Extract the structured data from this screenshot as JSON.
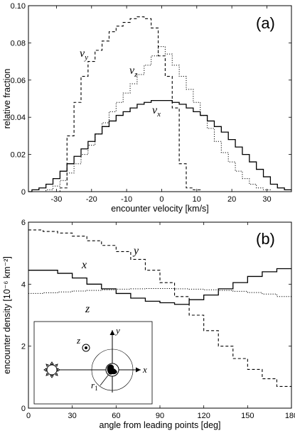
{
  "chart_data": [
    {
      "type": "line",
      "panel_label": "(a)",
      "xlabel": "encounter velocity [km/s]",
      "ylabel": "relative fraction",
      "xlim": [
        -38,
        37
      ],
      "ylim": [
        0,
        0.1
      ],
      "x_ticks": [
        -30,
        -20,
        -10,
        0,
        10,
        20,
        30
      ],
      "x_tick_labels": [
        "-30",
        "-20",
        "-10",
        "0",
        "10",
        "20",
        "30"
      ],
      "y_ticks": [
        0,
        0.02,
        0.04,
        0.06,
        0.08,
        0.1
      ],
      "y_tick_labels": [
        "0",
        "0.02",
        "0.04",
        "0.06",
        "0.08",
        "0.10"
      ],
      "grid": false,
      "series": [
        {
          "name": "v_x",
          "label_main": "v",
          "label_sub": "x",
          "style": "solid",
          "x": [
            -38,
            -36,
            -34,
            -32,
            -30,
            -28,
            -26,
            -24,
            -22,
            -20,
            -18,
            -16,
            -14,
            -12,
            -10,
            -8,
            -6,
            -4,
            -2,
            0,
            2,
            4,
            6,
            8,
            10,
            12,
            14,
            16,
            18,
            20,
            22,
            24,
            26,
            28,
            30,
            32,
            34,
            36
          ],
          "values": [
            0.0,
            0.001,
            0.002,
            0.004,
            0.007,
            0.011,
            0.015,
            0.019,
            0.023,
            0.027,
            0.031,
            0.035,
            0.038,
            0.041,
            0.043,
            0.045,
            0.047,
            0.048,
            0.049,
            0.049,
            0.049,
            0.048,
            0.047,
            0.045,
            0.043,
            0.041,
            0.038,
            0.035,
            0.032,
            0.028,
            0.024,
            0.02,
            0.016,
            0.012,
            0.008,
            0.004,
            0.002,
            0.001
          ]
        },
        {
          "name": "v_y",
          "label_main": "v",
          "label_sub": "y",
          "style": "dashed",
          "x": [
            -38,
            -36,
            -34,
            -32,
            -30,
            -28,
            -26,
            -24,
            -22,
            -20,
            -18,
            -16,
            -14,
            -12,
            -10,
            -8,
            -6,
            -4,
            -2,
            0,
            2,
            4,
            6,
            8,
            10,
            12,
            14,
            16,
            18,
            20,
            22,
            24,
            26,
            28,
            30,
            32,
            34,
            36
          ],
          "values": [
            0.0,
            0.0,
            0.0,
            0.0,
            0.0,
            0.002,
            0.03,
            0.048,
            0.062,
            0.07,
            0.076,
            0.081,
            0.086,
            0.089,
            0.091,
            0.093,
            0.094,
            0.093,
            0.088,
            0.073,
            0.062,
            0.045,
            0.015,
            0.002,
            0.001,
            0.0,
            0.0,
            0.0,
            0.0,
            0.0,
            0.0,
            0.0,
            0.0,
            0.0,
            0.0,
            0.0,
            0.0,
            0.0
          ]
        },
        {
          "name": "v_z",
          "label_main": "v",
          "label_sub": "z",
          "style": "dotted",
          "x": [
            -38,
            -36,
            -34,
            -32,
            -30,
            -28,
            -26,
            -24,
            -22,
            -20,
            -18,
            -16,
            -14,
            -12,
            -10,
            -8,
            -6,
            -4,
            -2,
            0,
            2,
            4,
            6,
            8,
            10,
            12,
            14,
            16,
            18,
            20,
            22,
            24,
            26,
            28,
            30,
            32,
            34,
            36
          ],
          "values": [
            0.0,
            0.0,
            0.0,
            0.001,
            0.003,
            0.006,
            0.01,
            0.015,
            0.02,
            0.025,
            0.031,
            0.037,
            0.043,
            0.048,
            0.053,
            0.058,
            0.063,
            0.068,
            0.073,
            0.078,
            0.074,
            0.068,
            0.062,
            0.055,
            0.048,
            0.041,
            0.034,
            0.027,
            0.021,
            0.016,
            0.011,
            0.007,
            0.004,
            0.002,
            0.001,
            0.0,
            0.0,
            0.0
          ]
        }
      ]
    },
    {
      "type": "line",
      "panel_label": "(b)",
      "xlabel": "angle from leading points [deg]",
      "ylabel": "encounter density [10⁻⁶ km⁻²]",
      "xlim": [
        0,
        180
      ],
      "ylim": [
        0,
        6
      ],
      "x_ticks": [
        0,
        30,
        60,
        90,
        120,
        150,
        180
      ],
      "x_tick_labels": [
        "0",
        "30",
        "60",
        "90",
        "120",
        "150",
        "180"
      ],
      "y_ticks": [
        0,
        2,
        4,
        6
      ],
      "y_tick_labels": [
        "0",
        "2",
        "4",
        "6"
      ],
      "grid": false,
      "series": [
        {
          "name": "x",
          "style": "solid",
          "x": [
            5,
            15,
            25,
            35,
            45,
            55,
            65,
            75,
            85,
            95,
            105,
            115,
            125,
            135,
            145,
            155,
            165,
            175
          ],
          "values": [
            4.45,
            4.45,
            4.35,
            4.2,
            4.0,
            3.85,
            3.7,
            3.55,
            3.45,
            3.4,
            3.35,
            3.5,
            3.65,
            3.85,
            4.05,
            4.25,
            4.4,
            4.5
          ]
        },
        {
          "name": "y",
          "style": "dashed",
          "x": [
            5,
            15,
            25,
            35,
            45,
            55,
            65,
            75,
            85,
            95,
            105,
            115,
            125,
            135,
            145,
            155,
            165,
            175
          ],
          "values": [
            5.75,
            5.7,
            5.65,
            5.55,
            5.4,
            5.25,
            5.05,
            4.8,
            4.45,
            4.05,
            3.6,
            3.0,
            2.5,
            2.0,
            1.6,
            1.25,
            0.95,
            0.7
          ]
        },
        {
          "name": "z",
          "style": "dotted",
          "x": [
            5,
            15,
            25,
            35,
            45,
            55,
            65,
            75,
            85,
            95,
            105,
            115,
            125,
            135,
            145,
            155,
            165,
            175
          ],
          "values": [
            3.7,
            3.72,
            3.75,
            3.78,
            3.8,
            3.82,
            3.84,
            3.85,
            3.86,
            3.86,
            3.85,
            3.84,
            3.82,
            3.8,
            3.77,
            3.73,
            3.68,
            3.6
          ]
        }
      ],
      "inset": {
        "axis_labels": [
          "y",
          "x",
          "z"
        ],
        "radius_label": "r",
        "radius_label_sub": "1",
        "sun_icon": "sun-icon",
        "earth_icon": "earth-icon"
      }
    }
  ]
}
